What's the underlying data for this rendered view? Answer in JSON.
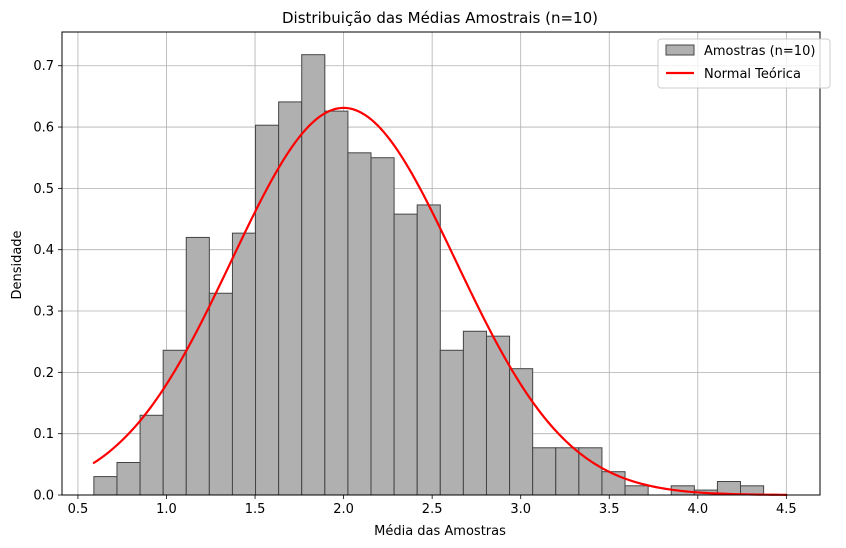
{
  "chart_data": {
    "type": "bar",
    "subtype": "histogram-with-density-curve",
    "title": "Distribuição das Médias Amostrais (n=10)",
    "xlabel": "Média das Amostras",
    "ylabel": "Densidade",
    "xlim": [
      0.41,
      4.69
    ],
    "ylim": [
      0,
      0.755
    ],
    "xticks": [
      0.5,
      1.0,
      1.5,
      2.0,
      2.5,
      3.0,
      3.5,
      4.0,
      4.5
    ],
    "xtick_labels": [
      "0.5",
      "1.0",
      "1.5",
      "2.0",
      "2.5",
      "3.0",
      "3.5",
      "4.0",
      "4.5"
    ],
    "yticks": [
      0.0,
      0.1,
      0.2,
      0.3,
      0.4,
      0.5,
      0.6,
      0.7
    ],
    "ytick_labels": [
      "0.0",
      "0.1",
      "0.2",
      "0.3",
      "0.4",
      "0.5",
      "0.6",
      "0.7"
    ],
    "grid": true,
    "legend_position": "top-right",
    "bin_start": 0.59,
    "bin_width": 0.1304,
    "series": [
      {
        "name": "Amostras (n=10)",
        "kind": "histogram",
        "color": "#b0b0b0",
        "edge_color": "#444444",
        "values": [
          0.03,
          0.053,
          0.13,
          0.236,
          0.42,
          0.329,
          0.427,
          0.603,
          0.641,
          0.718,
          0.626,
          0.558,
          0.55,
          0.458,
          0.473,
          0.236,
          0.267,
          0.259,
          0.206,
          0.077,
          0.077,
          0.077,
          0.038,
          0.015,
          0.0,
          0.015,
          0.008,
          0.022,
          0.015
        ]
      },
      {
        "name": "Normal Teórica",
        "kind": "line",
        "color": "#ff0000",
        "mean": 2.0,
        "std": 0.632,
        "x_range": [
          0.59,
          4.5
        ],
        "peak": 0.631
      }
    ]
  }
}
